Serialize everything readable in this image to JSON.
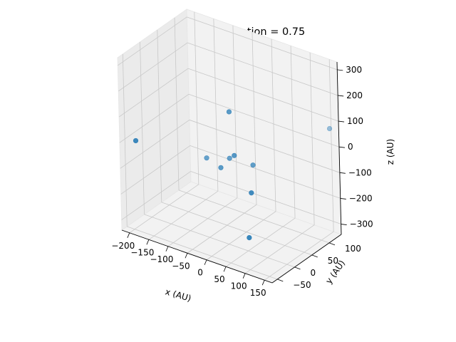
{
  "chart_data": {
    "type": "scatter",
    "projection": "3d",
    "title": "Cluster at t/duration = 0.75",
    "xlabel": "x (AU)",
    "ylabel": "y (AU)",
    "zlabel": "z (AU)",
    "xlim": [
      -220,
      170
    ],
    "ylim": [
      -65,
      135
    ],
    "zlim": [
      -340,
      330
    ],
    "x_ticks": [
      -200,
      -150,
      -100,
      -50,
      0,
      50,
      100,
      150
    ],
    "y_ticks": [
      -50,
      0,
      50,
      100
    ],
    "z_ticks": [
      -300,
      -200,
      -100,
      0,
      100,
      200,
      300
    ],
    "grid": true,
    "marker_color": "#1f77b4",
    "points": [
      {
        "x": -10,
        "y": 20,
        "z": 150
      },
      {
        "x": 10,
        "y": 10,
        "z": 0
      },
      {
        "x": -30,
        "y": 40,
        "z": -60
      },
      {
        "x": -35,
        "y": 20,
        "z": -80
      },
      {
        "x": -90,
        "y": 40,
        "z": -90
      },
      {
        "x": 40,
        "y": 30,
        "z": -40
      },
      {
        "x": -210,
        "y": -30,
        "z": -20
      },
      {
        "x": 160,
        "y": 120,
        "z": 80
      },
      {
        "x": 80,
        "y": -20,
        "z": -80
      },
      {
        "x": 90,
        "y": -40,
        "z": -230
      }
    ]
  }
}
